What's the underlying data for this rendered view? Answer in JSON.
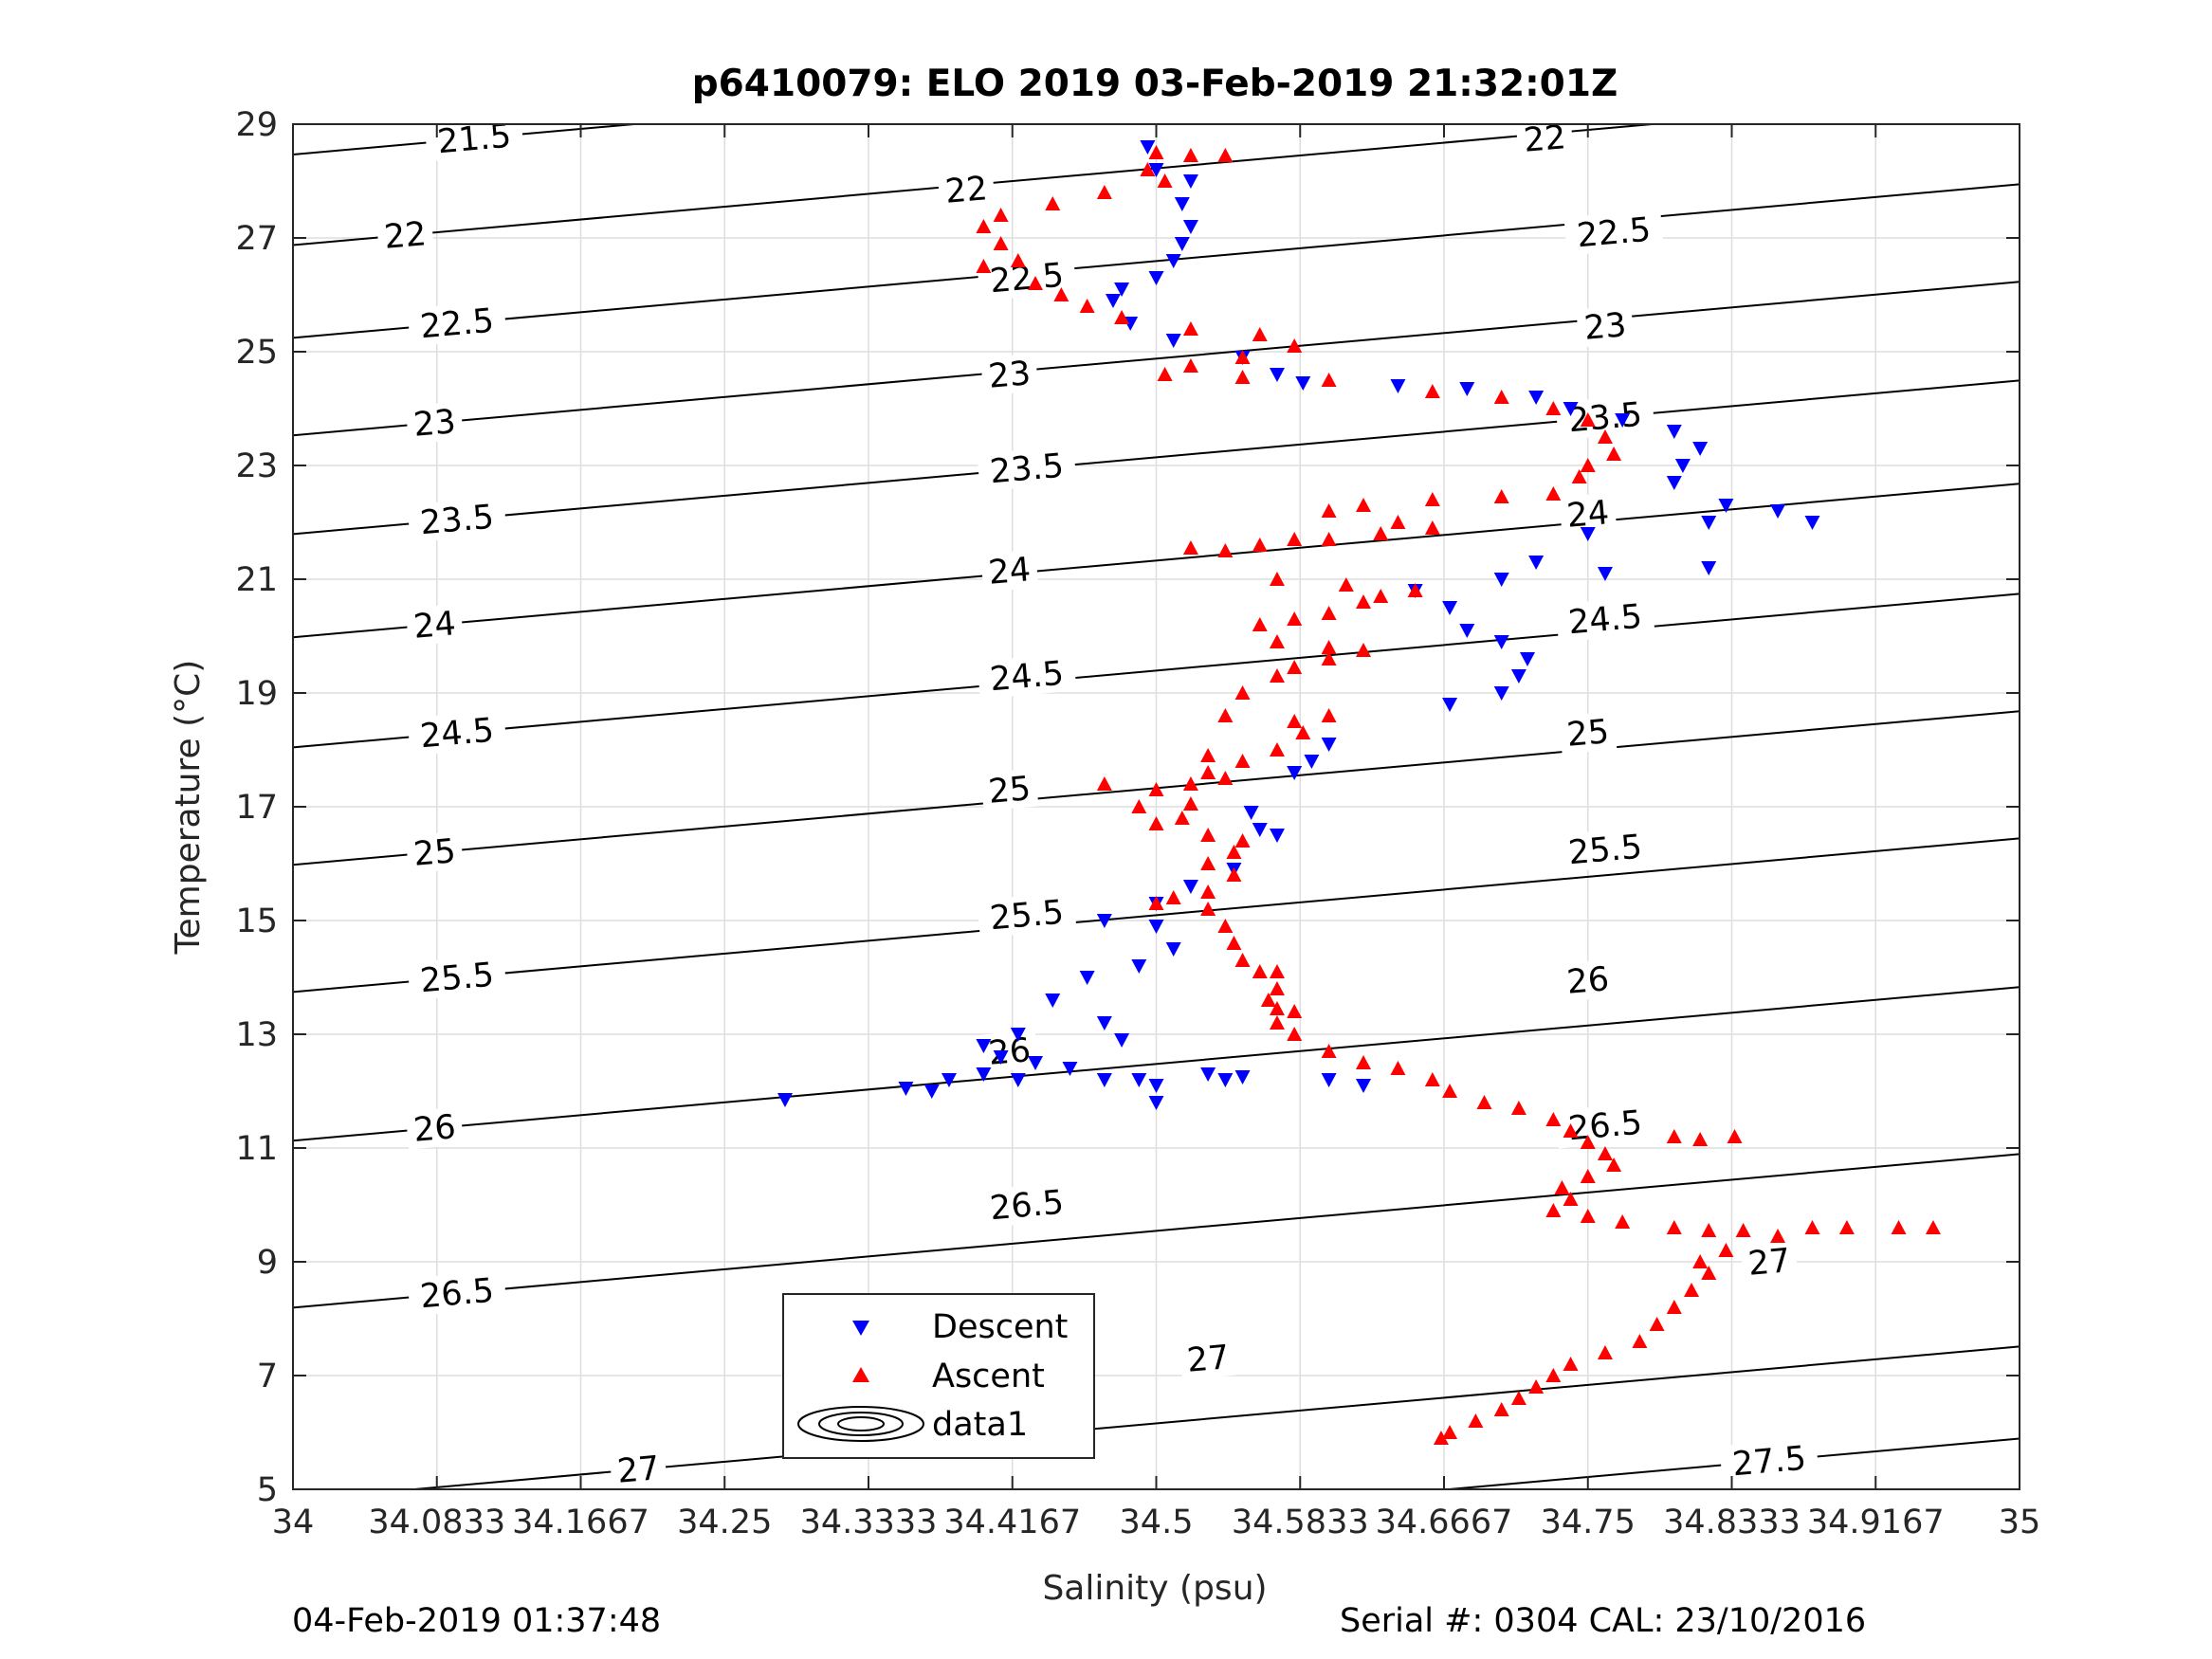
{
  "footer": {
    "left": "04-Feb-2019 01:37:48",
    "right": "Serial #: 0304  CAL: 23/10/2016"
  },
  "chart_data": {
    "type": "scatter",
    "title": "p6410079: ELO 2019 03-Feb-2019 21:32:01Z",
    "xlabel": "Salinity (psu)",
    "ylabel": "Temperature (°C)",
    "xlim": [
      34,
      35
    ],
    "ylim": [
      5,
      29
    ],
    "x_ticks": [
      "34",
      "34.0833",
      "34.1667",
      "34.25",
      "34.3333",
      "34.4167",
      "34.5",
      "34.5833",
      "34.6667",
      "34.75",
      "34.8333",
      "34.9167",
      "35"
    ],
    "y_ticks": [
      "5",
      "7",
      "9",
      "11",
      "13",
      "15",
      "17",
      "19",
      "21",
      "23",
      "25",
      "27",
      "29"
    ],
    "grid": true,
    "legend_position": "bottom-left",
    "density_contours": {
      "style": "black-line",
      "levels": [
        "21.5",
        "22",
        "22.5",
        "23",
        "23.5",
        "24",
        "24.5",
        "25",
        "25.5",
        "26",
        "26.5",
        "27",
        "27.5"
      ],
      "lines": [
        {
          "level": "21.5",
          "label_points": [
            [
              34.105,
              28.75
            ]
          ]
        },
        {
          "level": "22",
          "label_points": [
            [
              34.065,
              27.05
            ],
            [
              34.39,
              27.85
            ],
            [
              34.725,
              28.75
            ]
          ]
        },
        {
          "level": "22.5",
          "label_points": [
            [
              34.095,
              25.5
            ],
            [
              34.425,
              26.3
            ],
            [
              34.765,
              27.1
            ]
          ]
        },
        {
          "level": "23",
          "label_points": [
            [
              34.082,
              23.75
            ],
            [
              34.415,
              24.6
            ],
            [
              34.76,
              25.45
            ]
          ]
        },
        {
          "level": "23.5",
          "label_points": [
            [
              34.095,
              22.05
            ],
            [
              34.425,
              22.95
            ],
            [
              34.76,
              23.85
            ]
          ]
        },
        {
          "level": "24",
          "label_points": [
            [
              34.082,
              20.2
            ],
            [
              34.415,
              21.15
            ],
            [
              34.75,
              22.15
            ]
          ]
        },
        {
          "level": "24.5",
          "label_points": [
            [
              34.095,
              18.3
            ],
            [
              34.425,
              19.3
            ],
            [
              34.76,
              20.3
            ]
          ]
        },
        {
          "level": "25",
          "label_points": [
            [
              34.082,
              16.2
            ],
            [
              34.415,
              17.3
            ],
            [
              34.75,
              18.3
            ]
          ]
        },
        {
          "level": "25.5",
          "label_points": [
            [
              34.095,
              14.0
            ],
            [
              34.425,
              15.1
            ],
            [
              34.76,
              16.25
            ]
          ]
        },
        {
          "level": "26",
          "label_points": [
            [
              34.082,
              11.35
            ],
            [
              34.415,
              12.7
            ],
            [
              34.75,
              13.95
            ]
          ]
        },
        {
          "level": "26.5",
          "label_points": [
            [
              34.095,
              8.45
            ],
            [
              34.425,
              10.0
            ],
            [
              34.76,
              11.4
            ]
          ]
        },
        {
          "level": "27",
          "label_points": [
            [
              34.2,
              5.35
            ],
            [
              34.53,
              7.3
            ],
            [
              34.855,
              9.0
            ]
          ]
        },
        {
          "level": "27.5",
          "label_points": [
            [
              34.855,
              5.5
            ]
          ]
        }
      ]
    },
    "series": [
      {
        "name": "Descent",
        "marker": "triangle-down",
        "color": "#0000ff",
        "points": [
          [
            34.495,
            28.6
          ],
          [
            34.5,
            28.2
          ],
          [
            34.52,
            28.0
          ],
          [
            34.515,
            27.6
          ],
          [
            34.52,
            27.2
          ],
          [
            34.515,
            26.9
          ],
          [
            34.51,
            26.6
          ],
          [
            34.5,
            26.3
          ],
          [
            34.48,
            26.1
          ],
          [
            34.475,
            25.9
          ],
          [
            34.485,
            25.5
          ],
          [
            34.51,
            25.2
          ],
          [
            34.55,
            24.9
          ],
          [
            34.57,
            24.6
          ],
          [
            34.585,
            24.45
          ],
          [
            34.64,
            24.4
          ],
          [
            34.68,
            24.35
          ],
          [
            34.72,
            24.2
          ],
          [
            34.74,
            24.0
          ],
          [
            34.77,
            23.8
          ],
          [
            34.8,
            23.6
          ],
          [
            34.815,
            23.3
          ],
          [
            34.805,
            23.0
          ],
          [
            34.8,
            22.7
          ],
          [
            34.83,
            22.3
          ],
          [
            34.86,
            22.2
          ],
          [
            34.88,
            22.0
          ],
          [
            34.82,
            22.0
          ],
          [
            34.75,
            21.8
          ],
          [
            34.72,
            21.3
          ],
          [
            34.7,
            21.0
          ],
          [
            34.76,
            21.1
          ],
          [
            34.82,
            21.2
          ],
          [
            34.65,
            20.8
          ],
          [
            34.67,
            20.5
          ],
          [
            34.68,
            20.1
          ],
          [
            34.7,
            19.9
          ],
          [
            34.715,
            19.6
          ],
          [
            34.71,
            19.3
          ],
          [
            34.7,
            19.0
          ],
          [
            34.67,
            18.8
          ],
          [
            34.6,
            18.1
          ],
          [
            34.59,
            17.8
          ],
          [
            34.58,
            17.6
          ],
          [
            34.555,
            16.9
          ],
          [
            34.56,
            16.6
          ],
          [
            34.57,
            16.5
          ],
          [
            34.545,
            15.9
          ],
          [
            34.52,
            15.6
          ],
          [
            34.5,
            15.3
          ],
          [
            34.47,
            15.0
          ],
          [
            34.5,
            14.9
          ],
          [
            34.51,
            14.5
          ],
          [
            34.49,
            14.2
          ],
          [
            34.46,
            14.0
          ],
          [
            34.44,
            13.6
          ],
          [
            34.47,
            13.2
          ],
          [
            34.42,
            13.0
          ],
          [
            34.48,
            12.9
          ],
          [
            34.4,
            12.8
          ],
          [
            34.41,
            12.6
          ],
          [
            34.43,
            12.5
          ],
          [
            34.45,
            12.4
          ],
          [
            34.47,
            12.2
          ],
          [
            34.49,
            12.2
          ],
          [
            34.5,
            12.1
          ],
          [
            34.53,
            12.3
          ],
          [
            34.54,
            12.2
          ],
          [
            34.55,
            12.25
          ],
          [
            34.42,
            12.2
          ],
          [
            34.4,
            12.3
          ],
          [
            34.38,
            12.2
          ],
          [
            34.37,
            12.0
          ],
          [
            34.355,
            12.05
          ],
          [
            34.285,
            11.85
          ],
          [
            34.5,
            11.8
          ],
          [
            34.6,
            12.2
          ],
          [
            34.62,
            12.1
          ]
        ]
      },
      {
        "name": "Ascent",
        "marker": "triangle-up",
        "color": "#ff0000",
        "points": [
          [
            34.5,
            28.5
          ],
          [
            34.52,
            28.45
          ],
          [
            34.54,
            28.45
          ],
          [
            34.495,
            28.2
          ],
          [
            34.505,
            28.0
          ],
          [
            34.47,
            27.8
          ],
          [
            34.44,
            27.6
          ],
          [
            34.41,
            27.4
          ],
          [
            34.4,
            27.2
          ],
          [
            34.41,
            26.9
          ],
          [
            34.42,
            26.6
          ],
          [
            34.4,
            26.5
          ],
          [
            34.43,
            26.2
          ],
          [
            34.445,
            26.0
          ],
          [
            34.46,
            25.8
          ],
          [
            34.48,
            25.6
          ],
          [
            34.52,
            25.4
          ],
          [
            34.56,
            25.3
          ],
          [
            34.58,
            25.1
          ],
          [
            34.55,
            24.9
          ],
          [
            34.52,
            24.75
          ],
          [
            34.505,
            24.6
          ],
          [
            34.55,
            24.55
          ],
          [
            34.6,
            24.5
          ],
          [
            34.66,
            24.3
          ],
          [
            34.7,
            24.2
          ],
          [
            34.73,
            24.0
          ],
          [
            34.75,
            23.8
          ],
          [
            34.76,
            23.5
          ],
          [
            34.765,
            23.2
          ],
          [
            34.75,
            23.0
          ],
          [
            34.745,
            22.8
          ],
          [
            34.73,
            22.5
          ],
          [
            34.7,
            22.45
          ],
          [
            34.66,
            22.4
          ],
          [
            34.62,
            22.3
          ],
          [
            34.6,
            22.2
          ],
          [
            34.64,
            22.0
          ],
          [
            34.66,
            21.9
          ],
          [
            34.63,
            21.8
          ],
          [
            34.6,
            21.7
          ],
          [
            34.58,
            21.7
          ],
          [
            34.56,
            21.6
          ],
          [
            34.54,
            21.5
          ],
          [
            34.52,
            21.55
          ],
          [
            34.57,
            21.0
          ],
          [
            34.61,
            20.9
          ],
          [
            34.63,
            20.7
          ],
          [
            34.65,
            20.8
          ],
          [
            34.62,
            20.6
          ],
          [
            34.6,
            20.4
          ],
          [
            34.58,
            20.3
          ],
          [
            34.56,
            20.2
          ],
          [
            34.57,
            19.9
          ],
          [
            34.6,
            19.8
          ],
          [
            34.62,
            19.75
          ],
          [
            34.6,
            19.6
          ],
          [
            34.58,
            19.45
          ],
          [
            34.57,
            19.3
          ],
          [
            34.55,
            19.0
          ],
          [
            34.54,
            18.6
          ],
          [
            34.58,
            18.5
          ],
          [
            34.585,
            18.3
          ],
          [
            34.57,
            18.0
          ],
          [
            34.55,
            17.8
          ],
          [
            34.53,
            17.6
          ],
          [
            34.54,
            17.5
          ],
          [
            34.52,
            17.4
          ],
          [
            34.5,
            17.3
          ],
          [
            34.52,
            17.05
          ],
          [
            34.515,
            16.8
          ],
          [
            34.53,
            16.5
          ],
          [
            34.55,
            16.4
          ],
          [
            34.545,
            16.2
          ],
          [
            34.53,
            16.0
          ],
          [
            34.545,
            15.8
          ],
          [
            34.53,
            15.5
          ],
          [
            34.51,
            15.4
          ],
          [
            34.5,
            15.3
          ],
          [
            34.53,
            15.2
          ],
          [
            34.54,
            14.9
          ],
          [
            34.545,
            14.6
          ],
          [
            34.55,
            14.3
          ],
          [
            34.56,
            14.1
          ],
          [
            34.57,
            14.1
          ],
          [
            34.57,
            13.8
          ],
          [
            34.565,
            13.6
          ],
          [
            34.57,
            13.45
          ],
          [
            34.58,
            13.4
          ],
          [
            34.57,
            13.2
          ],
          [
            34.58,
            13.0
          ],
          [
            34.6,
            12.7
          ],
          [
            34.62,
            12.5
          ],
          [
            34.64,
            12.4
          ],
          [
            34.66,
            12.2
          ],
          [
            34.67,
            12.0
          ],
          [
            34.69,
            11.8
          ],
          [
            34.71,
            11.7
          ],
          [
            34.73,
            11.5
          ],
          [
            34.74,
            11.3
          ],
          [
            34.75,
            11.1
          ],
          [
            34.76,
            10.9
          ],
          [
            34.765,
            10.7
          ],
          [
            34.75,
            10.5
          ],
          [
            34.735,
            10.3
          ],
          [
            34.74,
            10.1
          ],
          [
            34.73,
            9.9
          ],
          [
            34.75,
            9.8
          ],
          [
            34.77,
            9.7
          ],
          [
            34.8,
            9.6
          ],
          [
            34.82,
            9.55
          ],
          [
            34.84,
            9.55
          ],
          [
            34.86,
            9.45
          ],
          [
            34.83,
            9.2
          ],
          [
            34.815,
            9.0
          ],
          [
            34.82,
            8.8
          ],
          [
            34.81,
            8.5
          ],
          [
            34.8,
            8.2
          ],
          [
            34.79,
            7.9
          ],
          [
            34.78,
            7.6
          ],
          [
            34.76,
            7.4
          ],
          [
            34.74,
            7.2
          ],
          [
            34.73,
            7.0
          ],
          [
            34.72,
            6.8
          ],
          [
            34.71,
            6.6
          ],
          [
            34.7,
            6.4
          ],
          [
            34.685,
            6.2
          ],
          [
            34.67,
            6.0
          ],
          [
            34.665,
            5.9
          ],
          [
            34.88,
            9.6
          ],
          [
            34.9,
            9.6
          ],
          [
            34.93,
            9.6
          ],
          [
            34.95,
            9.6
          ],
          [
            34.8,
            11.2
          ],
          [
            34.815,
            11.15
          ],
          [
            34.835,
            11.2
          ],
          [
            34.6,
            18.6
          ],
          [
            34.53,
            17.9
          ],
          [
            34.47,
            17.4
          ],
          [
            34.49,
            17.0
          ],
          [
            34.5,
            16.7
          ]
        ]
      }
    ]
  }
}
